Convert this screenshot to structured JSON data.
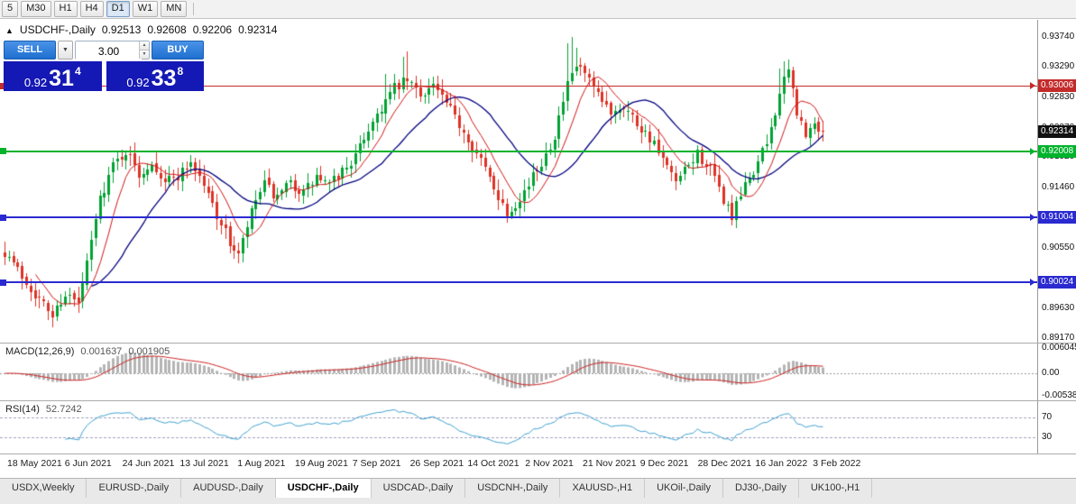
{
  "toolbar": {
    "timeframes": [
      {
        "label": "5",
        "active": false
      },
      {
        "label": "M30",
        "active": false
      },
      {
        "label": "H1",
        "active": false
      },
      {
        "label": "H4",
        "active": false
      },
      {
        "label": "D1",
        "active": true
      },
      {
        "label": "W1",
        "active": false
      },
      {
        "label": "MN",
        "active": false
      }
    ]
  },
  "chart": {
    "title": "USDCHF-,Daily",
    "ohlc": {
      "open": "0.92513",
      "high": "0.92608",
      "low": "0.92206",
      "close": "0.92314"
    },
    "trade_panel": {
      "sell_label": "SELL",
      "buy_label": "BUY",
      "volume": "3.00",
      "sell_price": {
        "prefix": "0.92",
        "big": "31",
        "sup": "4"
      },
      "buy_price": {
        "prefix": "0.92",
        "big": "33",
        "sup": "8"
      }
    },
    "current_price_badge": {
      "label": "0.92314",
      "color": "#101010"
    },
    "levels": [
      {
        "label": "0.93006",
        "price": 0.93006,
        "color": "#c42b2b",
        "thickness": 1
      },
      {
        "label": "0.92008",
        "price": 0.92008,
        "color": "#00b32c",
        "thickness": 2
      },
      {
        "label": "0.91004",
        "price": 0.91004,
        "color": "#2a2ad0",
        "thickness": 2
      },
      {
        "label": "0.90024",
        "price": 0.90024,
        "color": "#2a2ad0",
        "thickness": 2
      }
    ],
    "axis_ticks": [
      "0.93740",
      "0.93290",
      "0.92830",
      "0.92370",
      "0.91920",
      "0.91460",
      "0.90550",
      "0.89630",
      "0.89170"
    ]
  },
  "macd": {
    "label": "MACD(12,26,9)",
    "value_main": "0.001637",
    "value_signal": "0.001905",
    "axis_labels": [
      {
        "label": "0.006045",
        "value": 0.006045
      },
      {
        "label": "0.00",
        "value": 0
      },
      {
        "label": "-0.005383",
        "value": -0.005383
      }
    ]
  },
  "rsi": {
    "label": "RSI(14)",
    "value": "52.7242",
    "levels": [
      {
        "label": "70",
        "value": 70
      },
      {
        "label": "30",
        "value": 30
      }
    ]
  },
  "date_axis": [
    "18 May 2021",
    "6 Jun 2021",
    "24 Jun 2021",
    "13 Jul 2021",
    "1 Aug 2021",
    "19 Aug 2021",
    "7 Sep 2021",
    "26 Sep 2021",
    "14 Oct 2021",
    "2 Nov 2021",
    "21 Nov 2021",
    "9 Dec 2021",
    "28 Dec 2021",
    "16 Jan 2022",
    "3 Feb 2022"
  ],
  "tabs": [
    {
      "label": "USDX,Weekly",
      "active": false
    },
    {
      "label": "EURUSD-,Daily",
      "active": false
    },
    {
      "label": "AUDUSD-,Daily",
      "active": false
    },
    {
      "label": "USDCHF-,Daily",
      "active": true
    },
    {
      "label": "USDCAD-,Daily",
      "active": false
    },
    {
      "label": "USDCNH-,Daily",
      "active": false
    },
    {
      "label": "XAUUSD-,H1",
      "active": false
    },
    {
      "label": "UKOil-,Daily",
      "active": false
    },
    {
      "label": "DJ30-,Daily",
      "active": false
    },
    {
      "label": "UK100-,H1",
      "active": false
    }
  ],
  "colors": {
    "candle_up": "#00a232",
    "candle_down": "#de3226",
    "ma_fast": "#d01414",
    "ma_slow": "#00007f",
    "macd_hist": "#b4b4b4",
    "macd_signal": "#cc2020",
    "rsi_line": "#3da0d0",
    "rsi_level_dash": "#a0a0c0"
  },
  "chart_data": {
    "type": "candlestick",
    "symbol": "USDCHF-",
    "timeframe": "Daily",
    "ohlc_last": {
      "open": 0.92513,
      "high": 0.92608,
      "low": 0.92206,
      "close": 0.92314
    },
    "bid": 0.92314,
    "ask": 0.92338,
    "horizontal_levels": [
      0.93006,
      0.92008,
      0.91004,
      0.90024
    ],
    "y_axis_ticks": [
      0.9374,
      0.9329,
      0.9283,
      0.9237,
      0.9192,
      0.9146,
      0.9055,
      0.8963,
      0.8917
    ],
    "x_labels": [
      "18 May 2021",
      "6 Jun 2021",
      "24 Jun 2021",
      "13 Jul 2021",
      "1 Aug 2021",
      "19 Aug 2021",
      "7 Sep 2021",
      "26 Sep 2021",
      "14 Oct 2021",
      "2 Nov 2021",
      "21 Nov 2021",
      "9 Dec 2021",
      "28 Dec 2021",
      "16 Jan 2022",
      "3 Feb 2022"
    ],
    "candle_count": 190,
    "last_close": 0.92314,
    "seed": 7,
    "price_anchors": [
      [
        0,
        0.905
      ],
      [
        4,
        0.9012
      ],
      [
        8,
        0.8976
      ],
      [
        11,
        0.8952
      ],
      [
        14,
        0.8986
      ],
      [
        17,
        0.8968
      ],
      [
        19,
        0.903
      ],
      [
        22,
        0.913
      ],
      [
        25,
        0.918
      ],
      [
        28,
        0.9202
      ],
      [
        31,
        0.9166
      ],
      [
        34,
        0.9186
      ],
      [
        37,
        0.9156
      ],
      [
        40,
        0.9164
      ],
      [
        43,
        0.9186
      ],
      [
        46,
        0.915
      ],
      [
        49,
        0.9106
      ],
      [
        52,
        0.9062
      ],
      [
        54,
        0.9042
      ],
      [
        56,
        0.9086
      ],
      [
        58,
        0.9126
      ],
      [
        60,
        0.915
      ],
      [
        63,
        0.9128
      ],
      [
        66,
        0.9152
      ],
      [
        69,
        0.9138
      ],
      [
        72,
        0.9162
      ],
      [
        75,
        0.9148
      ],
      [
        78,
        0.9172
      ],
      [
        81,
        0.9192
      ],
      [
        84,
        0.9236
      ],
      [
        87,
        0.9268
      ],
      [
        90,
        0.9296
      ],
      [
        93,
        0.9308
      ],
      [
        96,
        0.9288
      ],
      [
        99,
        0.9302
      ],
      [
        102,
        0.9272
      ],
      [
        105,
        0.9242
      ],
      [
        107,
        0.9222
      ],
      [
        110,
        0.9186
      ],
      [
        113,
        0.9148
      ],
      [
        116,
        0.9108
      ],
      [
        119,
        0.9132
      ],
      [
        121,
        0.915
      ],
      [
        124,
        0.9186
      ],
      [
        127,
        0.9226
      ],
      [
        130,
        0.93
      ],
      [
        132,
        0.933
      ],
      [
        134,
        0.9318
      ],
      [
        137,
        0.9282
      ],
      [
        140,
        0.9262
      ],
      [
        143,
        0.9272
      ],
      [
        146,
        0.9244
      ],
      [
        149,
        0.9222
      ],
      [
        152,
        0.9186
      ],
      [
        155,
        0.9152
      ],
      [
        158,
        0.9178
      ],
      [
        160,
        0.9198
      ],
      [
        163,
        0.9172
      ],
      [
        166,
        0.9128
      ],
      [
        168,
        0.9102
      ],
      [
        171,
        0.9148
      ],
      [
        173,
        0.9172
      ],
      [
        176,
        0.9212
      ],
      [
        179,
        0.9288
      ],
      [
        181,
        0.9322
      ],
      [
        183,
        0.9262
      ],
      [
        185,
        0.9222
      ],
      [
        187,
        0.9242
      ],
      [
        189,
        0.92314
      ]
    ],
    "spike_highs": {
      "88": 0.9318,
      "92": 0.9345,
      "93": 0.9353,
      "130": 0.9365,
      "131": 0.9374,
      "132": 0.9358,
      "179": 0.9326,
      "180": 0.9337
    },
    "spike_lows": {
      "10": 0.8947,
      "11": 0.8943,
      "54": 0.903,
      "116": 0.9096,
      "168": 0.9092
    },
    "indicators": {
      "ma_fast_period": 8,
      "ma_slow_period": 21,
      "macd_params": [
        12,
        26,
        9
      ],
      "macd_last_values": [
        0.001637,
        0.001905
      ],
      "macd_axis": [
        0.006045,
        0.0,
        -0.005383
      ],
      "rsi_period": 14,
      "rsi_last_value": 52.7242,
      "rsi_levels": [
        70,
        30
      ]
    }
  }
}
